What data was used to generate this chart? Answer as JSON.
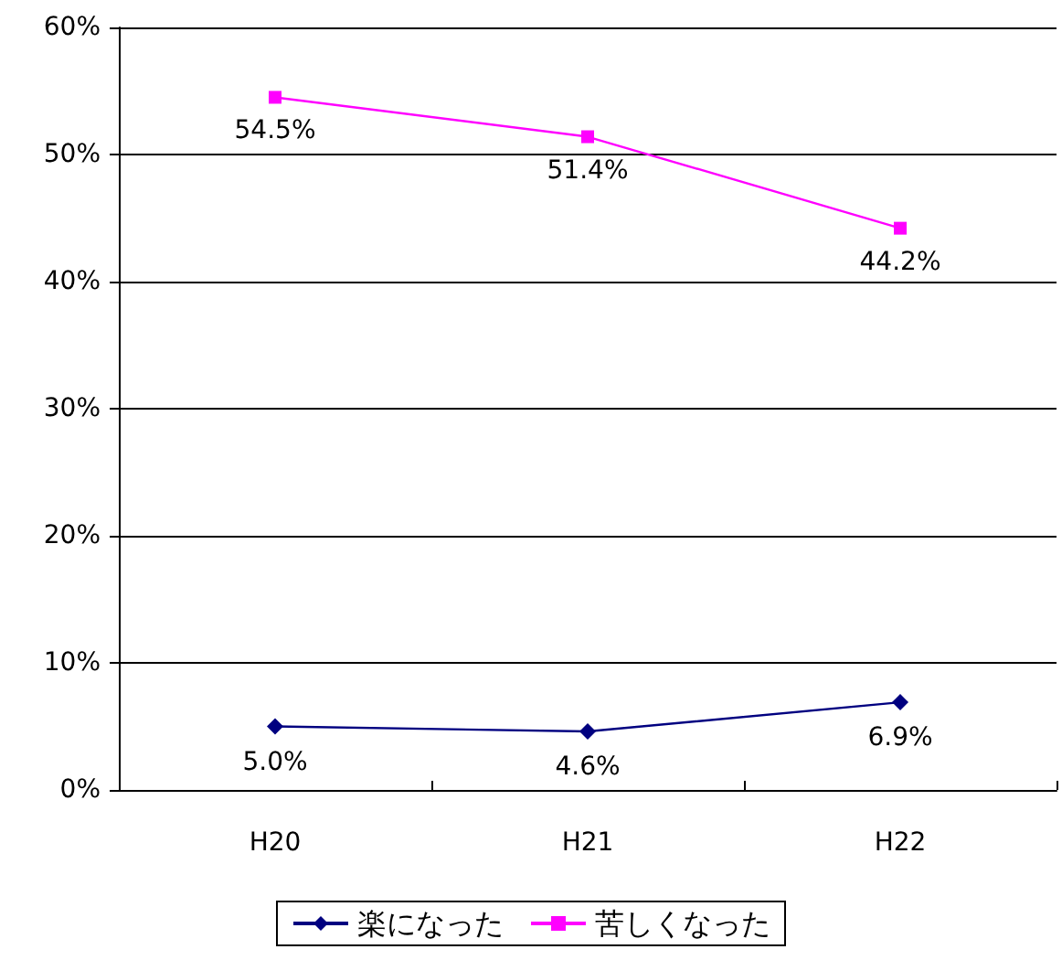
{
  "chart_data": {
    "type": "line",
    "categories": [
      "H20",
      "H21",
      "H22"
    ],
    "series": [
      {
        "name": "楽になった",
        "color": "#000080",
        "marker": "diamond",
        "values": [
          5.0,
          4.6,
          6.9
        ],
        "value_labels": [
          "5.0%",
          "4.6%",
          "6.9%"
        ]
      },
      {
        "name": "苦しくなった",
        "color": "#ff00ff",
        "marker": "square",
        "values": [
          54.5,
          51.4,
          44.2
        ],
        "value_labels": [
          "54.5%",
          "51.4%",
          "44.2%"
        ]
      }
    ],
    "ylim": [
      0,
      60
    ],
    "yticks": [
      {
        "value": 0,
        "label": "0%"
      },
      {
        "value": 10,
        "label": "10%"
      },
      {
        "value": 20,
        "label": "20%"
      },
      {
        "value": 30,
        "label": "30%"
      },
      {
        "value": 40,
        "label": "40%"
      },
      {
        "value": 50,
        "label": "50%"
      },
      {
        "value": 60,
        "label": "60%"
      }
    ],
    "grid": "y",
    "legend": "bottom",
    "line_style": "solid"
  }
}
